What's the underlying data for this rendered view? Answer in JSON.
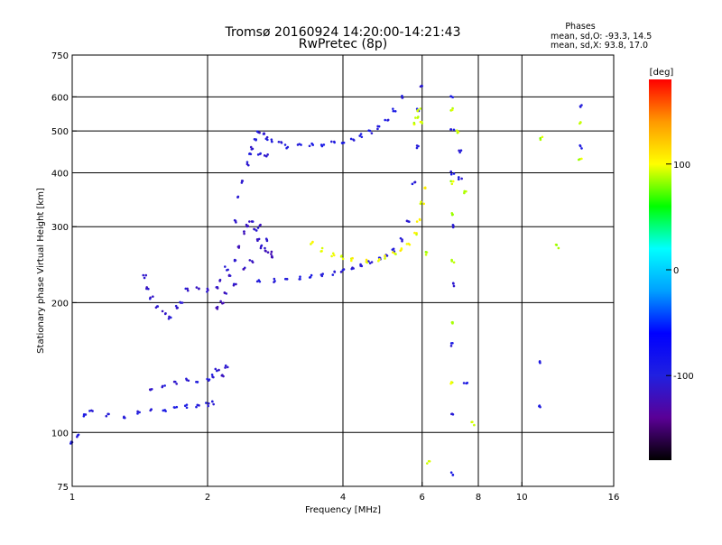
{
  "header": {
    "title_line1": "Tromsø 20160924 14:20:00-14:21:43",
    "title_line2": "RwPretec (8p)"
  },
  "phases_box": {
    "title": "Phases",
    "line_o": "mean, sd,O: -93.3, 14.5",
    "line_x": "mean, sd,X:  93.8, 17.0"
  },
  "colorbar": {
    "unit": "[deg]",
    "range": [
      -180,
      180
    ],
    "tick_labels": [
      "100",
      "0",
      "-100"
    ],
    "tick_values": [
      100,
      0,
      -100
    ],
    "stops": [
      "#000000",
      "#5a0096",
      "#2020e0",
      "#0000ff",
      "#00a0ff",
      "#00ffff",
      "#00ff00",
      "#ffff00",
      "#ff9900",
      "#ff0000"
    ]
  },
  "chart_data": {
    "type": "scatter",
    "title": "Tromsø 20160924 14:20:00-14:21:43",
    "subtitle": "RwPretec (8p)",
    "xlabel": "Frequency [MHz]",
    "ylabel": "Stationary phase Virtual Height [km]",
    "xscale": "log",
    "yscale": "log",
    "xlim": [
      1,
      16
    ],
    "ylim": [
      75,
      750
    ],
    "x_ticks": [
      1,
      2,
      4,
      6,
      8,
      10,
      16
    ],
    "x_tick_labels": [
      "1",
      "2",
      "4",
      "6",
      "8",
      "10",
      "16"
    ],
    "y_ticks": [
      75,
      100,
      200,
      300,
      400,
      500,
      600,
      750
    ],
    "y_tick_labels": [
      "75",
      "100",
      "200",
      "300",
      "400",
      "500",
      "600",
      "750"
    ],
    "grid": true,
    "color_encoding": "phase in degrees",
    "traces": [
      {
        "name": "",
        "phase": -100,
        "points": [
          [
            1.0,
            95
          ],
          [
            1.03,
            98
          ],
          [
            1.07,
            110
          ],
          [
            1.1,
            112
          ],
          [
            1.2,
            110
          ],
          [
            1.3,
            108
          ],
          [
            1.4,
            111
          ],
          [
            1.5,
            113
          ],
          [
            1.6,
            113
          ],
          [
            1.7,
            114
          ],
          [
            1.8,
            115
          ],
          [
            1.9,
            115
          ],
          [
            2.0,
            116
          ],
          [
            2.05,
            117
          ]
        ]
      },
      {
        "name": "",
        "phase": -108,
        "points": [
          [
            1.5,
            125
          ],
          [
            1.6,
            128
          ],
          [
            1.7,
            130
          ],
          [
            1.8,
            132
          ],
          [
            1.9,
            132
          ],
          [
            2.0,
            133
          ],
          [
            2.05,
            135
          ],
          [
            2.1,
            140
          ],
          [
            2.15,
            135
          ],
          [
            2.2,
            142
          ]
        ]
      },
      {
        "name": "",
        "phase": -110,
        "points": [
          [
            1.45,
            230
          ],
          [
            1.47,
            215
          ],
          [
            1.5,
            205
          ],
          [
            1.55,
            195
          ],
          [
            1.6,
            190
          ],
          [
            1.65,
            185
          ],
          [
            1.7,
            195
          ],
          [
            1.75,
            200
          ]
        ]
      },
      {
        "name": "",
        "phase": -112,
        "points": [
          [
            1.8,
            215
          ],
          [
            1.9,
            215
          ],
          [
            2.0,
            214
          ],
          [
            2.1,
            216
          ],
          [
            2.15,
            225
          ],
          [
            2.2,
            240
          ]
        ]
      },
      {
        "name": "",
        "phase": -115,
        "points": [
          [
            2.1,
            195
          ],
          [
            2.15,
            200
          ],
          [
            2.2,
            210
          ],
          [
            2.25,
            230
          ],
          [
            2.3,
            250
          ],
          [
            2.35,
            270
          ],
          [
            2.4,
            290
          ],
          [
            2.45,
            300
          ],
          [
            2.5,
            310
          ],
          [
            2.55,
            295
          ],
          [
            2.6,
            280
          ],
          [
            2.65,
            270
          ],
          [
            2.7,
            265
          ],
          [
            2.75,
            260
          ],
          [
            2.8,
            255
          ],
          [
            2.4,
            240
          ],
          [
            2.5,
            250
          ],
          [
            2.3,
            220
          ],
          [
            2.6,
            300
          ],
          [
            2.7,
            280
          ]
        ]
      },
      {
        "name": "",
        "phase": -105,
        "points": [
          [
            2.3,
            310
          ],
          [
            2.35,
            350
          ],
          [
            2.4,
            380
          ],
          [
            2.45,
            420
          ],
          [
            2.5,
            455
          ],
          [
            2.55,
            480
          ],
          [
            2.6,
            500
          ],
          [
            2.65,
            490
          ],
          [
            2.7,
            480
          ],
          [
            2.8,
            475
          ],
          [
            2.9,
            470
          ],
          [
            2.5,
            440
          ],
          [
            2.6,
            440
          ],
          [
            2.7,
            438
          ]
        ]
      },
      {
        "name": "",
        "phase": -102,
        "points": [
          [
            2.6,
            225
          ],
          [
            2.8,
            225
          ],
          [
            3.0,
            226
          ],
          [
            3.2,
            228
          ],
          [
            3.4,
            230
          ],
          [
            3.6,
            232
          ],
          [
            3.8,
            234
          ],
          [
            4.0,
            237
          ],
          [
            4.2,
            240
          ],
          [
            4.4,
            244
          ],
          [
            4.6,
            248
          ],
          [
            4.8,
            252
          ],
          [
            5.0,
            258
          ],
          [
            5.2,
            265
          ],
          [
            5.4,
            280
          ],
          [
            5.6,
            310
          ],
          [
            5.75,
            380
          ],
          [
            5.85,
            460
          ],
          [
            5.9,
            560
          ],
          [
            5.95,
            640
          ]
        ]
      },
      {
        "name": "",
        "phase": -98,
        "points": [
          [
            3.0,
            460
          ],
          [
            3.2,
            462
          ],
          [
            3.4,
            463
          ],
          [
            3.6,
            465
          ],
          [
            3.8,
            468
          ],
          [
            4.0,
            472
          ],
          [
            4.2,
            480
          ],
          [
            4.4,
            488
          ],
          [
            4.6,
            497
          ],
          [
            4.8,
            510
          ],
          [
            5.0,
            530
          ],
          [
            5.2,
            560
          ],
          [
            5.4,
            600
          ]
        ]
      },
      {
        "name": "",
        "phase": 100,
        "points": [
          [
            3.4,
            275
          ],
          [
            3.6,
            265
          ],
          [
            3.8,
            258
          ],
          [
            4.0,
            255
          ],
          [
            4.2,
            252
          ],
          [
            4.5,
            250
          ],
          [
            4.8,
            252
          ],
          [
            5.0,
            255
          ],
          [
            5.2,
            260
          ],
          [
            5.4,
            265
          ],
          [
            5.6,
            275
          ],
          [
            5.8,
            290
          ],
          [
            5.9,
            310
          ],
          [
            6.0,
            340
          ],
          [
            6.05,
            370
          ]
        ]
      },
      {
        "name": "",
        "phase": 95,
        "points": [
          [
            5.8,
            520
          ],
          [
            5.85,
            540
          ],
          [
            5.9,
            560
          ],
          [
            6.0,
            520
          ]
        ]
      },
      {
        "name": "",
        "phase": -100,
        "points": [
          [
            7.0,
            600
          ],
          [
            7.0,
            500
          ],
          [
            7.0,
            400
          ],
          [
            7.0,
            300
          ],
          [
            7.0,
            220
          ],
          [
            7.0,
            160
          ],
          [
            7.0,
            110
          ],
          [
            7.0,
            80
          ],
          [
            7.3,
            450
          ],
          [
            7.3,
            390
          ],
          [
            7.5,
            130
          ],
          [
            11.0,
            145
          ],
          [
            11.0,
            115
          ],
          [
            13.5,
            570
          ],
          [
            13.5,
            460
          ]
        ]
      },
      {
        "name": "",
        "phase": 90,
        "points": [
          [
            7.0,
            560
          ],
          [
            7.0,
            380
          ],
          [
            7.0,
            320
          ],
          [
            7.0,
            250
          ],
          [
            7.0,
            180
          ],
          [
            7.0,
            130
          ],
          [
            7.2,
            500
          ],
          [
            7.5,
            360
          ],
          [
            7.8,
            105
          ],
          [
            6.2,
            85
          ],
          [
            6.1,
            260
          ],
          [
            11.0,
            480
          ],
          [
            13.5,
            520
          ],
          [
            13.5,
            430
          ],
          [
            12.0,
            270
          ]
        ]
      }
    ]
  }
}
